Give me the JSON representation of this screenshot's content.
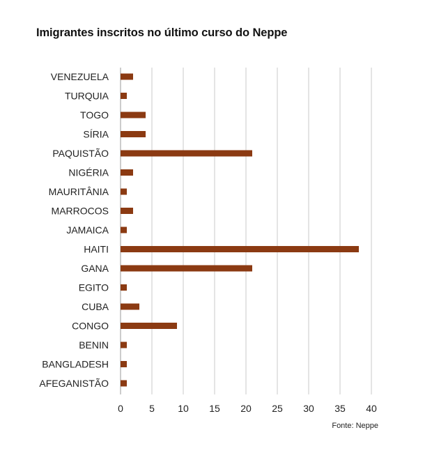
{
  "chart_data": {
    "type": "bar",
    "orientation": "horizontal",
    "title": "Imigrantes inscritos no último curso do Neppe",
    "source": "Fonte: Neppe",
    "categories": [
      "VENEZUELA",
      "TURQUIA",
      "TOGO",
      "SÍRIA",
      "PAQUISTÃO",
      "NIGÉRIA",
      "MAURITÂNIA",
      "MARROCOS",
      "JAMAICA",
      "HAITI",
      "GANA",
      "EGITO",
      "CUBA",
      "CONGO",
      "BENIN",
      "BANGLADESH",
      "AFEGANISTÃO"
    ],
    "values": [
      2,
      1,
      4,
      4,
      21,
      2,
      1,
      2,
      1,
      38,
      21,
      1,
      3,
      9,
      1,
      1,
      1
    ],
    "xlim": [
      0,
      40
    ],
    "xticks": [
      0,
      5,
      10,
      15,
      20,
      25,
      30,
      35,
      40
    ],
    "grid": true,
    "bar_color": "#8b3a12",
    "grid_color": "#c8c8c8"
  }
}
